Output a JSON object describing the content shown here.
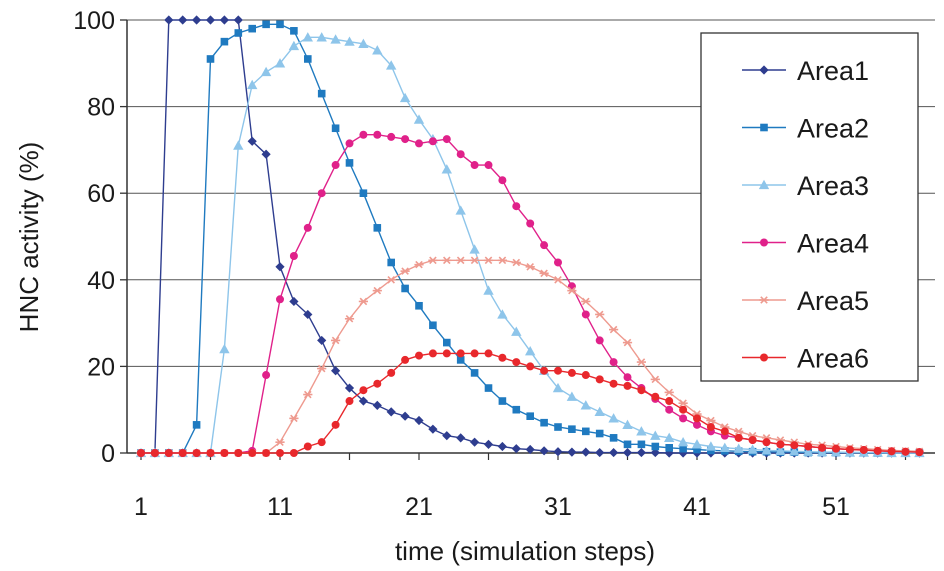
{
  "chart_data": {
    "type": "line",
    "title": "",
    "xlabel": "time (simulation steps)",
    "ylabel": "HNC activity (%)",
    "xlim": [
      1,
      57
    ],
    "ylim": [
      0,
      100
    ],
    "x_ticks": [
      1,
      11,
      21,
      31,
      41,
      51
    ],
    "y_ticks": [
      0,
      20,
      40,
      60,
      80,
      100
    ],
    "grid": "horizontal",
    "legend_position": "right",
    "x": [
      1,
      2,
      3,
      4,
      5,
      6,
      7,
      8,
      9,
      10,
      11,
      12,
      13,
      14,
      15,
      16,
      17,
      18,
      19,
      20,
      21,
      22,
      23,
      24,
      25,
      26,
      27,
      28,
      29,
      30,
      31,
      32,
      33,
      34,
      35,
      36,
      37,
      38,
      39,
      40,
      41,
      42,
      43,
      44,
      45,
      46,
      47,
      48,
      49,
      50,
      51,
      52,
      53,
      54,
      55,
      56,
      57
    ],
    "series": [
      {
        "name": "Area1",
        "color": "#2e3d8f",
        "marker": "diamond",
        "values": [
          0,
          0,
          100,
          100,
          100,
          100,
          100,
          100,
          72,
          69,
          43,
          35,
          32,
          26,
          19,
          15,
          12,
          11,
          9.5,
          8.5,
          7.5,
          5.5,
          4,
          3.5,
          2.5,
          2,
          1.5,
          1,
          0.8,
          0.5,
          0.3,
          0.2,
          0.2,
          0.1,
          0.1,
          0.1,
          0.1,
          0.1,
          0,
          0,
          0,
          0,
          0,
          0,
          0,
          0,
          0,
          0,
          0,
          0,
          0,
          0,
          0,
          0,
          0,
          0,
          0
        ]
      },
      {
        "name": "Area2",
        "color": "#1f7ac0",
        "marker": "square",
        "values": [
          0,
          0,
          0,
          0,
          6.5,
          91,
          95,
          97,
          98,
          99,
          99,
          97.5,
          91,
          83,
          75,
          67,
          60,
          52,
          44,
          38,
          34,
          29.5,
          25.5,
          21.5,
          18.5,
          15,
          12,
          10,
          8.5,
          7,
          6,
          5.5,
          5,
          4.5,
          3.5,
          2,
          2,
          1.5,
          1.2,
          1,
          0.8,
          0.6,
          0.5,
          0.4,
          0.3,
          0.3,
          0.2,
          0.2,
          0.1,
          0.1,
          0.1,
          0.1,
          0.1,
          0,
          0,
          0,
          0
        ]
      },
      {
        "name": "Area3",
        "color": "#8ec5ea",
        "marker": "triangle",
        "values": [
          0,
          0,
          0,
          0,
          0,
          0,
          24,
          71,
          85,
          88,
          90,
          94,
          96,
          96,
          95.5,
          95,
          94.5,
          93,
          89.5,
          82,
          77,
          72.5,
          65.5,
          56,
          47,
          37.5,
          32,
          28,
          23.5,
          19,
          15,
          13,
          11,
          9.5,
          8,
          6.5,
          5,
          4,
          3.5,
          2.5,
          2,
          1.5,
          1.2,
          1,
          0.8,
          0.6,
          0.5,
          0.4,
          0.3,
          0.2,
          0.2,
          0.1,
          0.1,
          0.1,
          0,
          0,
          0
        ]
      },
      {
        "name": "Area4",
        "color": "#e0218a",
        "marker": "circle",
        "values": [
          0,
          0,
          0,
          0,
          0,
          0,
          0,
          0,
          0.5,
          18,
          35.5,
          45.5,
          52,
          60,
          66.5,
          71.5,
          73.5,
          73.5,
          73,
          72.5,
          71.5,
          72,
          72.5,
          69,
          66.5,
          66.5,
          63,
          57,
          53,
          48,
          44,
          38.5,
          32,
          26,
          21,
          17.5,
          15,
          12.5,
          10,
          8,
          6.5,
          5,
          4,
          3.5,
          3,
          2.5,
          2,
          1.8,
          1.5,
          1.2,
          1,
          0.8,
          0.7,
          0.5,
          0.4,
          0.3,
          0.2
        ]
      },
      {
        "name": "Area5",
        "color": "#ee9a8f",
        "marker": "star",
        "values": [
          0,
          0,
          0,
          0,
          0,
          0,
          0,
          0,
          0,
          0,
          2.5,
          8,
          13.5,
          19.5,
          26,
          31,
          35,
          37.5,
          40,
          42,
          43.5,
          44.5,
          44.5,
          44.5,
          44.5,
          44.5,
          44.5,
          44,
          43,
          41.5,
          40,
          37.5,
          35,
          32,
          28.5,
          25.5,
          21,
          17,
          14,
          11.5,
          9,
          7.5,
          6,
          5,
          4,
          3.5,
          3,
          2.5,
          2,
          1.8,
          1.5,
          1.2,
          1,
          0.8,
          0.6,
          0.5,
          0.4
        ]
      },
      {
        "name": "Area6",
        "color": "#e8282c",
        "marker": "circle",
        "values": [
          0,
          0,
          0,
          0,
          0,
          0,
          0,
          0,
          0,
          0,
          0,
          0,
          1.5,
          2.5,
          6.5,
          12,
          14.5,
          16,
          18.5,
          21.5,
          22.5,
          23,
          23,
          23,
          23,
          23,
          22,
          21,
          20,
          19,
          19,
          18.5,
          18,
          17,
          16,
          15.5,
          14.5,
          13,
          12,
          10,
          8,
          6,
          5,
          3.5,
          3,
          2.5,
          2,
          1.8,
          1.5,
          1.2,
          1,
          0.8,
          0.7,
          0.5,
          0.4,
          0.3,
          0.2
        ]
      }
    ]
  }
}
